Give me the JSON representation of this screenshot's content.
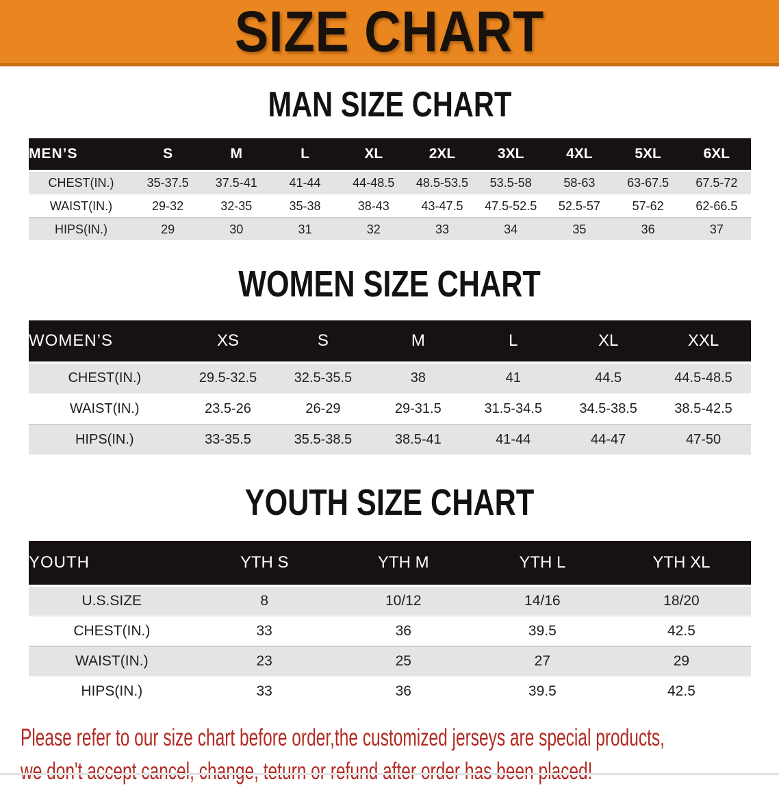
{
  "banner": {
    "title": "SIZE CHART"
  },
  "sections": [
    {
      "title": "MAN SIZE CHART",
      "table": {
        "header_label": "MEN’S",
        "columns": [
          "S",
          "M",
          "L",
          "XL",
          "2XL",
          "3XL",
          "4XL",
          "5XL",
          "6XL"
        ],
        "rows": [
          {
            "label": "CHEST(IN.)",
            "values": [
              "35-37.5",
              "37.5-41",
              "41-44",
              "44-48.5",
              "48.5-53.5",
              "53.5-58",
              "58-63",
              "63-67.5",
              "67.5-72"
            ]
          },
          {
            "label": "WAIST(IN.)",
            "values": [
              "29-32",
              "32-35",
              "35-38",
              "38-43",
              "43-47.5",
              "47.5-52.5",
              "52.5-57",
              "57-62",
              "62-66.5"
            ]
          },
          {
            "label": "HIPS(IN.)",
            "values": [
              "29",
              "30",
              "31",
              "32",
              "33",
              "34",
              "35",
              "36",
              "37"
            ]
          }
        ]
      }
    },
    {
      "title": "WOMEN SIZE CHART",
      "table": {
        "header_label": "WOMEN’S",
        "columns": [
          "XS",
          "S",
          "M",
          "L",
          "XL",
          "XXL"
        ],
        "rows": [
          {
            "label": "CHEST(IN.)",
            "values": [
              "29.5-32.5",
              "32.5-35.5",
              "38",
              "41",
              "44.5",
              "44.5-48.5"
            ]
          },
          {
            "label": "WAIST(IN.)",
            "values": [
              "23.5-26",
              "26-29",
              "29-31.5",
              "31.5-34.5",
              "34.5-38.5",
              "38.5-42.5"
            ]
          },
          {
            "label": "HIPS(IN.)",
            "values": [
              "33-35.5",
              "35.5-38.5",
              "38.5-41",
              "41-44",
              "44-47",
              "47-50"
            ]
          }
        ]
      }
    },
    {
      "title": "YOUTH SIZE CHART",
      "table": {
        "header_label": "YOUTH",
        "columns": [
          "YTH S",
          "YTH M",
          "YTH L",
          "YTH XL"
        ],
        "rows": [
          {
            "label": "U.S.SIZE",
            "values": [
              "8",
              "10/12",
              "14/16",
              "18/20"
            ]
          },
          {
            "label": "CHEST(IN.)",
            "values": [
              "33",
              "36",
              "39.5",
              "42.5"
            ]
          },
          {
            "label": "WAIST(IN.)",
            "values": [
              "23",
              "25",
              "27",
              "29"
            ]
          },
          {
            "label": "HIPS(IN.)",
            "values": [
              "33",
              "36",
              "39.5",
              "42.5"
            ]
          }
        ]
      }
    }
  ],
  "footer": {
    "line1": "Please refer to our size chart before order,the customized jerseys are special products,",
    "line2": "we don't accept cancel, change, teturn or refund after order has been placed!"
  },
  "colors": {
    "banner_bg": "#EA861F",
    "banner_edge": "#C76E12",
    "bar_bg": "#171112",
    "row_shade": "#E4E4E4",
    "notice": "#B22A22"
  }
}
